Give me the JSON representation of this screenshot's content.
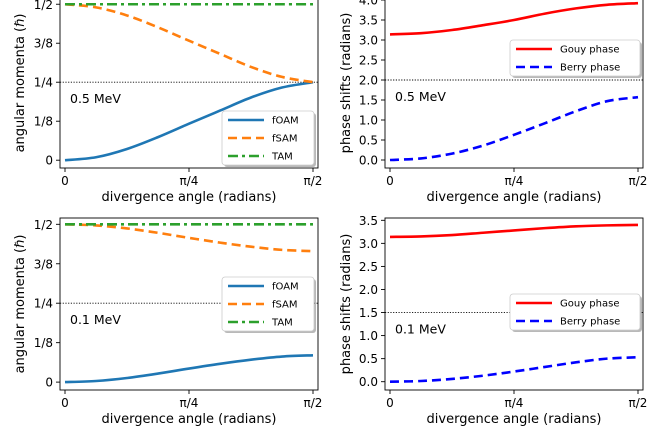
{
  "chart_data": [
    {
      "type": "line",
      "xlabel": "divergence angle (radians)",
      "ylabel": "angular momenta (ℏ)",
      "xticks": [
        "0",
        "π/4",
        "π/2"
      ],
      "yticks": [
        "0",
        "1/8",
        "1/4",
        "3/8",
        "1/2"
      ],
      "xlim": [
        0,
        1.5708
      ],
      "ylim": [
        -0.025,
        0.52
      ],
      "annotation": "0.5 MeV",
      "hline": 0.25,
      "legend_position": "lower-right",
      "x": [
        0,
        0.19635,
        0.3927,
        0.58905,
        0.7854,
        0.98175,
        1.1781,
        1.37445,
        1.5708
      ],
      "series": [
        {
          "name": "fOAM",
          "color": "#1f77b4",
          "style": "solid",
          "values": [
            0.0,
            0.0095,
            0.036,
            0.074,
            0.117,
            0.159,
            0.201,
            0.233,
            0.25
          ]
        },
        {
          "name": "fSAM",
          "color": "#ff7f0e",
          "style": "dashed",
          "values": [
            0.5,
            0.49,
            0.464,
            0.426,
            0.383,
            0.341,
            0.299,
            0.267,
            0.25
          ]
        },
        {
          "name": "TAM",
          "color": "#2ca02c",
          "style": "dashdot",
          "values": [
            0.5,
            0.5,
            0.5,
            0.5,
            0.5,
            0.5,
            0.5,
            0.5,
            0.5
          ]
        }
      ]
    },
    {
      "type": "line",
      "xlabel": "divergence angle (radians)",
      "ylabel": "phase shifts (radians)",
      "xticks": [
        "0",
        "π/4",
        "π/2"
      ],
      "yticks": [
        "0.0",
        "0.5",
        "1.0",
        "1.5",
        "2.0",
        "2.5",
        "3.0",
        "3.5",
        "4.0"
      ],
      "xlim": [
        0,
        1.5708
      ],
      "ylim": [
        -0.2,
        4.05
      ],
      "annotation": "0.5 MeV",
      "hline": 2.0,
      "legend_position": "center-right",
      "x": [
        0,
        0.19635,
        0.3927,
        0.58905,
        0.7854,
        0.98175,
        1.1781,
        1.37445,
        1.5708
      ],
      "series": [
        {
          "name": "Gouy phase",
          "color": "#ff0000",
          "style": "solid",
          "values": [
            3.14,
            3.17,
            3.25,
            3.37,
            3.5,
            3.66,
            3.79,
            3.88,
            3.92
          ]
        },
        {
          "name": "Berry phase",
          "color": "#0000ff",
          "style": "dashed",
          "values": [
            0.0,
            0.04,
            0.16,
            0.36,
            0.63,
            0.92,
            1.22,
            1.47,
            1.57
          ]
        }
      ]
    },
    {
      "type": "line",
      "xlabel": "divergence angle (radians)",
      "ylabel": "angular momenta (ℏ)",
      "xticks": [
        "0",
        "π/4",
        "π/2"
      ],
      "yticks": [
        "0",
        "1/8",
        "1/4",
        "3/8",
        "1/2"
      ],
      "xlim": [
        0,
        1.5708
      ],
      "ylim": [
        -0.025,
        0.52
      ],
      "annotation": "0.1 MeV",
      "hline": 0.25,
      "legend_position": "center-right",
      "x": [
        0,
        0.19635,
        0.3927,
        0.58905,
        0.7854,
        0.98175,
        1.1781,
        1.37445,
        1.5708
      ],
      "series": [
        {
          "name": "fOAM",
          "color": "#1f77b4",
          "style": "solid",
          "values": [
            0.0,
            0.0035,
            0.013,
            0.027,
            0.043,
            0.058,
            0.071,
            0.081,
            0.085
          ]
        },
        {
          "name": "fSAM",
          "color": "#ff7f0e",
          "style": "dashed",
          "values": [
            0.5,
            0.4965,
            0.487,
            0.473,
            0.457,
            0.442,
            0.429,
            0.419,
            0.415
          ]
        },
        {
          "name": "TAM",
          "color": "#2ca02c",
          "style": "dashdot",
          "values": [
            0.5,
            0.5,
            0.5,
            0.5,
            0.5,
            0.5,
            0.5,
            0.5,
            0.5
          ]
        }
      ]
    },
    {
      "type": "line",
      "xlabel": "divergence angle (radians)",
      "ylabel": "phase shifts (radians)",
      "xticks": [
        "0",
        "π/4",
        "π/2"
      ],
      "yticks": [
        "0.0",
        "0.5",
        "1.0",
        "1.5",
        "2.0",
        "2.5",
        "3.0",
        "3.5"
      ],
      "xlim": [
        0,
        1.5708
      ],
      "ylim": [
        -0.18,
        3.55
      ],
      "annotation": "0.1 MeV",
      "hline": 1.5,
      "legend_position": "center-right",
      "x": [
        0,
        0.19635,
        0.3927,
        0.58905,
        0.7854,
        0.98175,
        1.1781,
        1.37445,
        1.5708
      ],
      "series": [
        {
          "name": "Gouy phase",
          "color": "#ff0000",
          "style": "solid",
          "values": [
            3.14,
            3.15,
            3.18,
            3.23,
            3.28,
            3.33,
            3.37,
            3.39,
            3.4
          ]
        },
        {
          "name": "Berry phase",
          "color": "#0000ff",
          "style": "dashed",
          "values": [
            0.0,
            0.015,
            0.06,
            0.13,
            0.22,
            0.32,
            0.42,
            0.5,
            0.53
          ]
        }
      ]
    }
  ]
}
